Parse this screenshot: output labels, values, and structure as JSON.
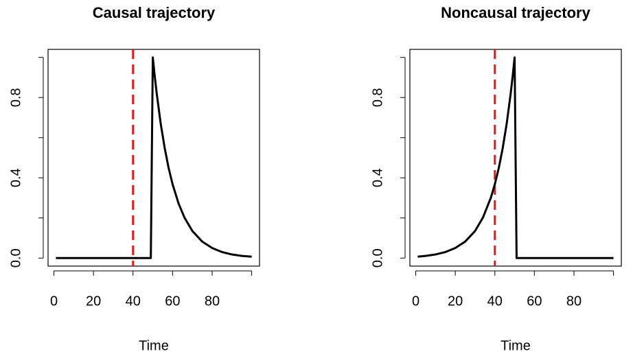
{
  "chart_data": [
    {
      "type": "line",
      "title": "Causal trajectory",
      "x_label": "Time",
      "x": [
        1,
        5,
        10,
        15,
        20,
        25,
        30,
        35,
        40,
        45,
        49,
        50,
        51,
        52,
        54,
        56,
        58,
        60,
        63,
        66,
        70,
        75,
        80,
        85,
        90,
        95,
        100
      ],
      "series": [
        {
          "color": "#000000",
          "values": [
            0,
            0,
            0,
            0,
            0,
            0,
            0,
            0,
            0,
            0,
            0,
            1,
            0.905,
            0.819,
            0.67,
            0.549,
            0.449,
            0.368,
            0.273,
            0.202,
            0.135,
            0.082,
            0.05,
            0.03,
            0.018,
            0.011,
            0.007
          ]
        }
      ],
      "vline": 40,
      "vline_color": "#e8191c",
      "xlim": [
        -2.96,
        103.96
      ],
      "ylim": [
        -0.04,
        1.04
      ],
      "xticks": [
        0,
        20,
        40,
        60,
        80,
        {
          "value": 100,
          "label": null
        }
      ],
      "yticks": [
        {
          "value": 0,
          "label": "0.0"
        },
        {
          "value": 0.2,
          "label": null
        },
        {
          "value": 0.4,
          "label": "0.4"
        },
        {
          "value": 0.6,
          "label": null
        },
        {
          "value": 0.8,
          "label": "0.8"
        },
        {
          "value": 1,
          "label": null
        }
      ]
    },
    {
      "type": "line",
      "title": "Noncausal trajectory",
      "x_label": "Time",
      "x": [
        1,
        5,
        10,
        15,
        20,
        25,
        30,
        34,
        38,
        40,
        42,
        44,
        46,
        48,
        49,
        50,
        51,
        55,
        60,
        70,
        80,
        90,
        100
      ],
      "series": [
        {
          "color": "#000000",
          "values": [
            0.007,
            0.011,
            0.018,
            0.03,
            0.05,
            0.082,
            0.135,
            0.202,
            0.301,
            0.368,
            0.449,
            0.549,
            0.67,
            0.819,
            0.905,
            1,
            0,
            0,
            0,
            0,
            0,
            0,
            0
          ]
        }
      ],
      "vline": 40,
      "vline_color": "#e8191c",
      "xlim": [
        -2.96,
        103.96
      ],
      "ylim": [
        -0.04,
        1.04
      ],
      "xticks": [
        0,
        20,
        40,
        60,
        80,
        {
          "value": 100,
          "label": null
        }
      ],
      "yticks": [
        {
          "value": 0,
          "label": "0.0"
        },
        {
          "value": 0.2,
          "label": null
        },
        {
          "value": 0.4,
          "label": "0.4"
        },
        {
          "value": 0.6,
          "label": null
        },
        {
          "value": 0.8,
          "label": "0.8"
        },
        {
          "value": 1,
          "label": null
        }
      ]
    }
  ]
}
